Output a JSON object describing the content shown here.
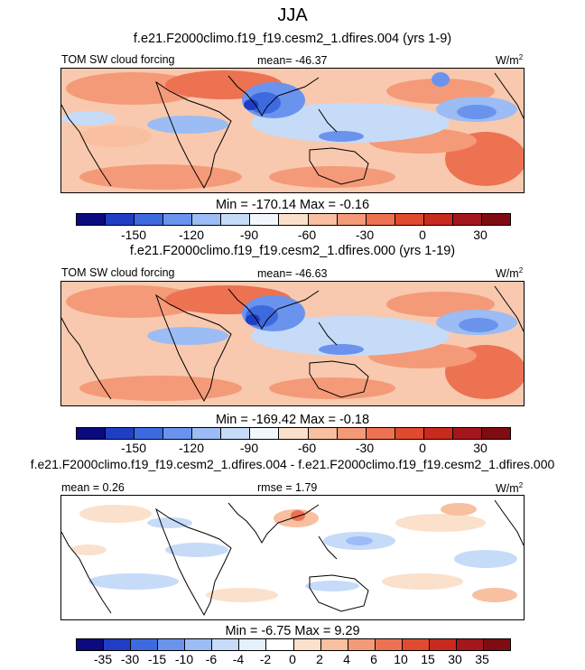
{
  "figure": {
    "season": "JJA",
    "colors_main": [
      "#0b0a7e",
      "#1f3ec4",
      "#3e6ae0",
      "#6a93ee",
      "#9bbcf4",
      "#c6dbf8",
      "#f2f7fd",
      "#fbe0cc",
      "#f8bfa0",
      "#f49a78",
      "#ed7252",
      "#e04a2f",
      "#c82a1e",
      "#a3161c",
      "#7e0c12"
    ],
    "colors_diff": [
      "#0b0a7e",
      "#1f3ec4",
      "#3e6ae0",
      "#6a93ee",
      "#9bbcf4",
      "#c6dbf8",
      "#e6f0fb",
      "#ffffff",
      "#fbe0cc",
      "#f8bfa0",
      "#f49a78",
      "#ed7252",
      "#e04a2f",
      "#c82a1e",
      "#a3161c",
      "#7e0c12"
    ]
  },
  "chart_data": [
    {
      "type": "heatmap",
      "title": "f.e21.F2000climo.f19_f19.cesm2_1.dfires.004 (yrs 1-9)",
      "variable": "TOM SW cloud forcing",
      "stat_label": "mean= -46.37",
      "units": "W/m",
      "units_sup": "2",
      "min_max": "Min = -170.14 Max =  -0.16",
      "min": -170.14,
      "max": -0.16,
      "mean": -46.37,
      "colorbar_ticks": [
        "-150",
        "-120",
        "-90",
        "-60",
        "-30",
        "0",
        "30"
      ],
      "colorbar_levels": [
        -165,
        -150,
        -135,
        -120,
        -105,
        -90,
        -75,
        -60,
        -45,
        -30,
        -15,
        0,
        15,
        30
      ]
    },
    {
      "type": "heatmap",
      "title": "f.e21.F2000climo.f19_f19.cesm2_1.dfires.000 (yrs 1-19)",
      "variable": "TOM SW cloud forcing",
      "stat_label": "mean= -46.63",
      "units": "W/m",
      "units_sup": "2",
      "min_max": "Min = -169.42 Max =  -0.18",
      "min": -169.42,
      "max": -0.18,
      "mean": -46.63,
      "colorbar_ticks": [
        "-150",
        "-120",
        "-90",
        "-60",
        "-30",
        "0",
        "30"
      ],
      "colorbar_levels": [
        -165,
        -150,
        -135,
        -120,
        -105,
        -90,
        -75,
        -60,
        -45,
        -30,
        -15,
        0,
        15,
        30
      ]
    },
    {
      "type": "heatmap",
      "title": "f.e21.F2000climo.f19_f19.cesm2_1.dfires.004 - f.e21.F2000climo.f19_f19.cesm2_1.dfires.000",
      "mean_label": "mean =   0.26",
      "rmse_label": "rmse =   1.79",
      "units": "W/m",
      "units_sup": "2",
      "min_max": "Min = -6.75 Max =   9.29",
      "min": -6.75,
      "max": 9.29,
      "mean": 0.26,
      "rmse": 1.79,
      "colorbar_ticks": [
        "-35",
        "-30",
        "-15",
        "-10",
        "-6",
        "-4",
        "-2",
        "0",
        "2",
        "4",
        "6",
        "10",
        "15",
        "30",
        "35"
      ],
      "colorbar_levels": [
        -35,
        -30,
        -15,
        -10,
        -6,
        -4,
        -2,
        0,
        2,
        4,
        6,
        10,
        15,
        30,
        35
      ]
    }
  ]
}
